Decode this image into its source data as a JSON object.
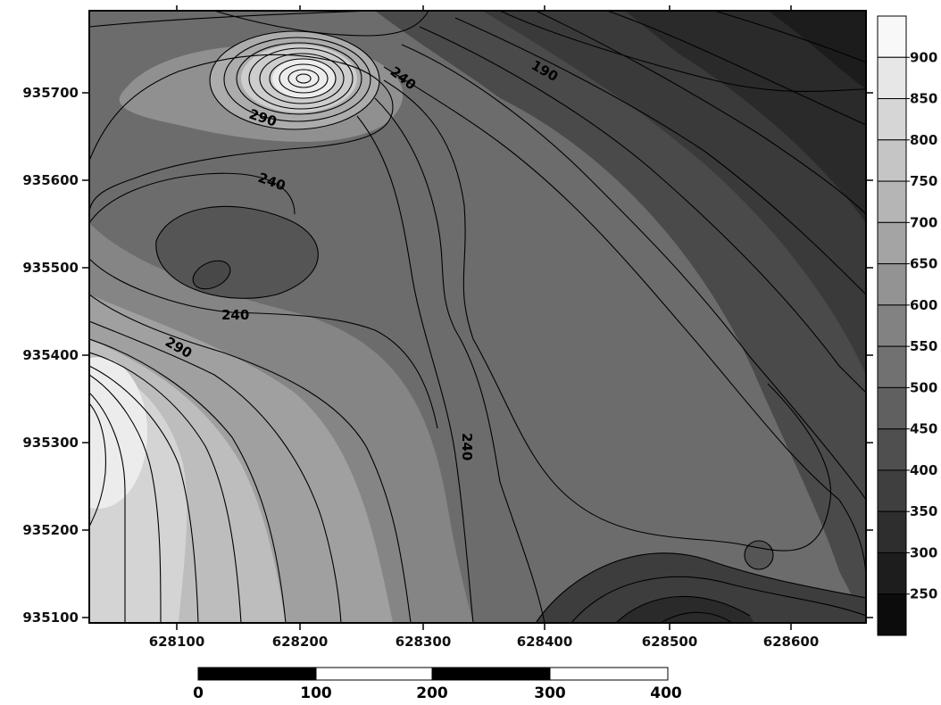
{
  "map": {
    "x_ticks": [
      "628100",
      "628200",
      "628300",
      "628400",
      "628500",
      "628600"
    ],
    "y_ticks": [
      "935700",
      "935600",
      "935500",
      "935400",
      "935300",
      "935200",
      "935100"
    ],
    "contour_labels": [
      "240",
      "190",
      "290",
      "240",
      "240",
      "290",
      "240"
    ]
  },
  "legend": {
    "levels": [
      "900",
      "850",
      "800",
      "750",
      "700",
      "650",
      "600",
      "550",
      "500",
      "450",
      "400",
      "350",
      "300",
      "250"
    ]
  },
  "scale_bar": {
    "labels": [
      "0",
      "100",
      "200",
      "300",
      "400"
    ]
  },
  "colors": {
    "frame": "#000000",
    "low": "#111111",
    "high": "#f8f8f8"
  }
}
